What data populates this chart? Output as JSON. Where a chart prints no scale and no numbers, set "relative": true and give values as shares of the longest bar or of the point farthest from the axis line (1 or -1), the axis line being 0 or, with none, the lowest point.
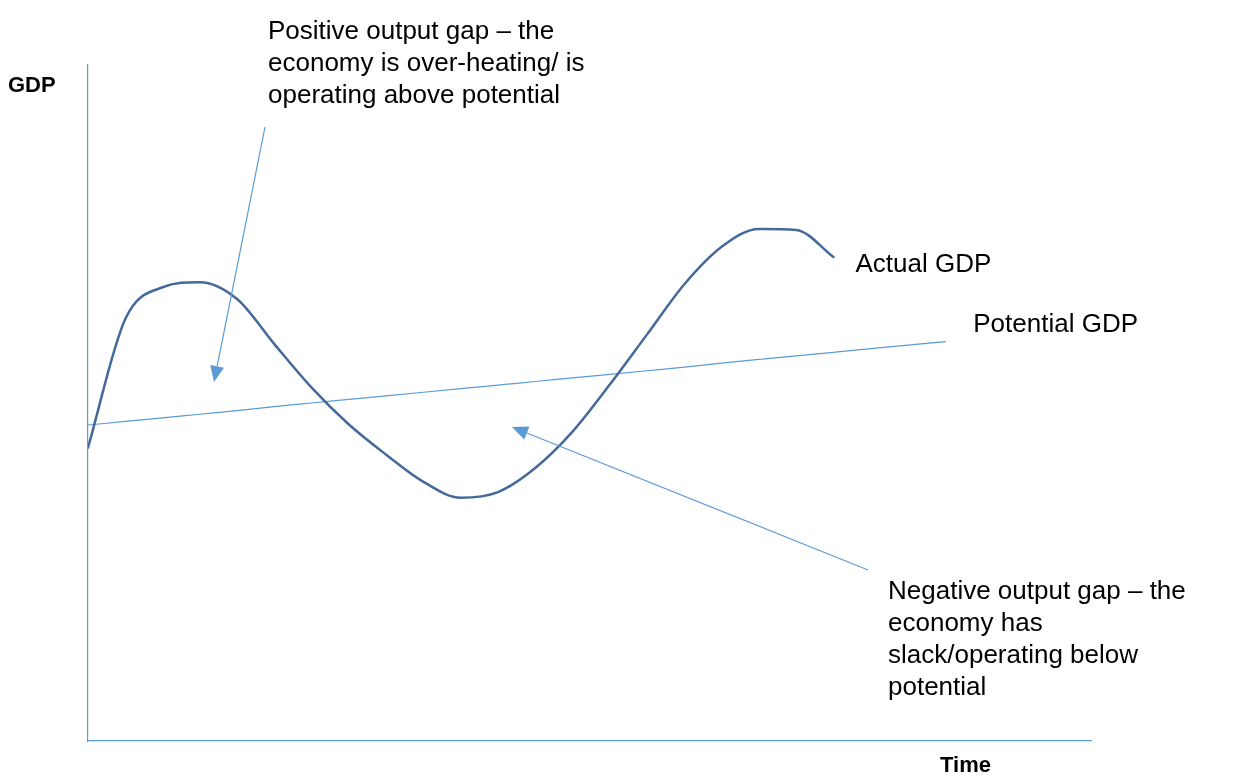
{
  "chart_data": {
    "type": "line",
    "relative": true,
    "xlabel": "Time",
    "marker": "none",
    "line_style": "solid",
    "categories": [
      null,
      null,
      null,
      null,
      null,
      null,
      null,
      null,
      null,
      null,
      null,
      null,
      null,
      null,
      null,
      null,
      null,
      null,
      null,
      null,
      null,
      null,
      null,
      null
    ],
    "series": [
      {
        "name": "Actual GDP",
        "color": "#44699a",
        "values": [
          0.573,
          0.824,
          0.886,
          0.896,
          0.863,
          0.775,
          0.69,
          0.618,
          0.559,
          0.506,
          0.475,
          0.486,
          0.533,
          0.604,
          0.696,
          0.794,
          0.892,
          0.965,
          1.0,
          0.998,
          0.945,
          null,
          null,
          null
        ]
      },
      {
        "name": "Potential GDP",
        "color": "#5b9bd5",
        "values": [
          0.617,
          0.624,
          0.631,
          0.638,
          0.645,
          0.653,
          0.66,
          0.667,
          0.674,
          0.681,
          0.688,
          0.695,
          0.702,
          0.709,
          0.716,
          0.723,
          0.73,
          0.738,
          0.745,
          0.752,
          0.759,
          0.766,
          0.773,
          0.78
        ]
      }
    ],
    "annotations": [
      "GDP",
      "Positive output gap – the economy is over-heating/ is operating above potential",
      "Negative output gap – the economy has slack/operating below potential"
    ]
  }
}
